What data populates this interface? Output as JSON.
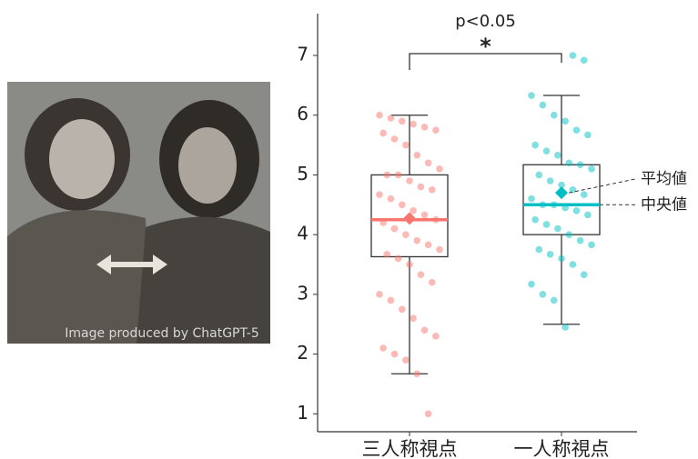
{
  "image": {
    "caption": "Image produced by ChatGPT-5"
  },
  "chart_data": {
    "type": "box",
    "categories": [
      "三人称視点",
      "一人称視点"
    ],
    "series": [
      {
        "color": "#f8766d",
        "min": 1.67,
        "q1": 3.63,
        "median": 4.25,
        "q3": 5.0,
        "max": 6.0,
        "mean": 4.27,
        "points": [
          6.0,
          5.95,
          5.9,
          5.85,
          5.8,
          5.75,
          5.7,
          5.6,
          5.5,
          5.33,
          5.2,
          5.1,
          5.0,
          5.0,
          4.9,
          4.8,
          4.75,
          4.67,
          4.6,
          4.5,
          4.4,
          4.33,
          4.25,
          4.2,
          4.1,
          4.0,
          3.9,
          3.83,
          3.75,
          3.67,
          3.6,
          3.5,
          3.33,
          3.2,
          3.0,
          2.9,
          2.75,
          2.6,
          2.4,
          2.3,
          2.1,
          2.0,
          1.9,
          1.67,
          1.0
        ]
      },
      {
        "color": "#00bfc4",
        "min": 2.5,
        "q1": 4.0,
        "median": 4.5,
        "q3": 5.17,
        "max": 6.33,
        "mean": 4.7,
        "points": [
          7.0,
          6.92,
          6.33,
          6.17,
          6.0,
          5.9,
          5.75,
          5.67,
          5.5,
          5.4,
          5.33,
          5.2,
          5.17,
          5.1,
          5.0,
          4.9,
          4.83,
          4.75,
          4.67,
          4.6,
          4.5,
          4.5,
          4.45,
          4.4,
          4.33,
          4.25,
          4.17,
          4.1,
          4.0,
          3.9,
          3.83,
          3.75,
          3.67,
          3.6,
          3.5,
          3.33,
          3.17,
          3.0,
          2.9,
          2.45
        ]
      }
    ],
    "ylim": [
      0.7,
      7.7
    ],
    "yticks": [
      1,
      2,
      3,
      4,
      5,
      6,
      7
    ],
    "significance": {
      "label": "p<0.05",
      "marker": "*"
    },
    "mean_label": "平均値",
    "median_label": "中央値"
  }
}
